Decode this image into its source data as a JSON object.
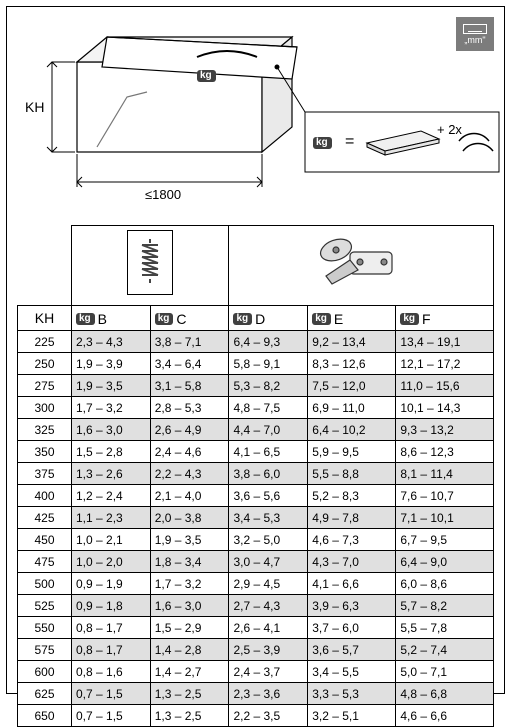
{
  "units_badge": "„mm\"",
  "diagram": {
    "kh_label": "KH",
    "width_label": "≤1800",
    "equals": "=",
    "plus_2x": "+ 2x",
    "kg_label": "kg"
  },
  "table": {
    "kh_header": "KH",
    "columns": [
      {
        "letter": "B",
        "kg": "kg"
      },
      {
        "letter": "C",
        "kg": "kg"
      },
      {
        "letter": "D",
        "kg": "kg"
      },
      {
        "letter": "E",
        "kg": "kg"
      },
      {
        "letter": "F",
        "kg": "kg"
      }
    ],
    "rows": [
      {
        "kh": "225",
        "cells": [
          "2,3 – 4,3",
          "3,8 – 7,1",
          "6,4 – 9,3",
          "9,2 – 13,4",
          "13,4 – 19,1"
        ]
      },
      {
        "kh": "250",
        "cells": [
          "1,9 – 3,9",
          "3,4 – 6,4",
          "5,8 – 9,1",
          "8,3 – 12,6",
          "12,1 – 17,2"
        ]
      },
      {
        "kh": "275",
        "cells": [
          "1,9 – 3,5",
          "3,1 – 5,8",
          "5,3 – 8,2",
          "7,5 – 12,0",
          "11,0 – 15,6"
        ]
      },
      {
        "kh": "300",
        "cells": [
          "1,7 – 3,2",
          "2,8 – 5,3",
          "4,8 – 7,5",
          "6,9 – 11,0",
          "10,1 – 14,3"
        ]
      },
      {
        "kh": "325",
        "cells": [
          "1,6 – 3,0",
          "2,6 – 4,9",
          "4,4 – 7,0",
          "6,4 – 10,2",
          "9,3 – 13,2"
        ]
      },
      {
        "kh": "350",
        "cells": [
          "1,5 – 2,8",
          "2,4 – 4,6",
          "4,1 – 6,5",
          "5,9 – 9,5",
          "8,6 – 12,3"
        ]
      },
      {
        "kh": "375",
        "cells": [
          "1,3 – 2,6",
          "2,2 – 4,3",
          "3,8 – 6,0",
          "5,5 – 8,8",
          "8,1 – 11,4"
        ]
      },
      {
        "kh": "400",
        "cells": [
          "1,2 – 2,4",
          "2,1 – 4,0",
          "3,6 – 5,6",
          "5,2 – 8,3",
          "7,6 – 10,7"
        ]
      },
      {
        "kh": "425",
        "cells": [
          "1,1 – 2,3",
          "2,0 – 3,8",
          "3,4 – 5,3",
          "4,9 – 7,8",
          "7,1 – 10,1"
        ]
      },
      {
        "kh": "450",
        "cells": [
          "1,0 – 2,1",
          "1,9 – 3,5",
          "3,2 – 5,0",
          "4,6 – 7,3",
          "6,7 – 9,5"
        ]
      },
      {
        "kh": "475",
        "cells": [
          "1,0 – 2,0",
          "1,8 – 3,4",
          "3,0 – 4,7",
          "4,3 – 7,0",
          "6,4 – 9,0"
        ]
      },
      {
        "kh": "500",
        "cells": [
          "0,9 – 1,9",
          "1,7 – 3,2",
          "2,9 – 4,5",
          "4,1 – 6,6",
          "6,0 – 8,6"
        ]
      },
      {
        "kh": "525",
        "cells": [
          "0,9 – 1,8",
          "1,6 – 3,0",
          "2,7 – 4,3",
          "3,9 – 6,3",
          "5,7 – 8,2"
        ]
      },
      {
        "kh": "550",
        "cells": [
          "0,8 – 1,7",
          "1,5 – 2,9",
          "2,6 – 4,1",
          "3,7 – 6,0",
          "5,5 – 7,8"
        ]
      },
      {
        "kh": "575",
        "cells": [
          "0,8 – 1,7",
          "1,4 – 2,8",
          "2,5 – 3,9",
          "3,6 – 5,7",
          "5,2 – 7,4"
        ]
      },
      {
        "kh": "600",
        "cells": [
          "0,8 – 1,6",
          "1,4 – 2,7",
          "2,4 – 3,7",
          "3,4 – 5,5",
          "5,0 – 7,1"
        ]
      },
      {
        "kh": "625",
        "cells": [
          "0,7 – 1,5",
          "1,3 – 2,5",
          "2,3 – 3,6",
          "3,3 – 5,3",
          "4,8 – 6,8"
        ]
      },
      {
        "kh": "650",
        "cells": [
          "0,7 – 1,5",
          "1,3 – 2,5",
          "2,2 – 3,5",
          "3,2 – 5,1",
          "4,6 – 6,6"
        ]
      }
    ]
  },
  "style": {
    "stripe_color": "#e0e0e0",
    "border_color": "#000000",
    "kg_badge_bg": "#404040"
  }
}
